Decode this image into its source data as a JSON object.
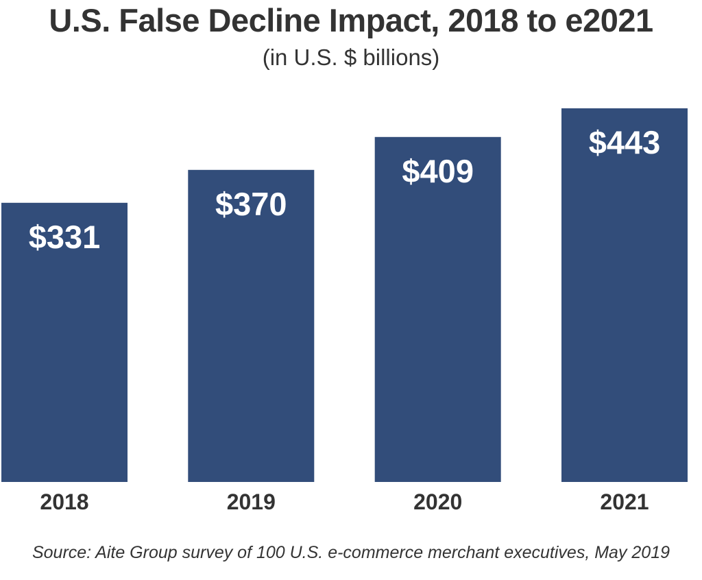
{
  "chart_data": {
    "type": "bar",
    "title": "U.S. False Decline Impact, 2018 to e2021",
    "subtitle": "(in U.S. $ billions)",
    "categories": [
      "2018",
      "2019",
      "2020",
      "2021"
    ],
    "values": [
      331,
      370,
      409,
      443
    ],
    "value_labels": [
      "$331",
      "$370",
      "$409",
      "$443"
    ],
    "xlabel": "",
    "ylabel": "",
    "ylim": [
      0,
      443
    ],
    "grid": false,
    "bar_color": "#324d7a"
  },
  "footer": {
    "source": "Source: Aite Group survey of 100 U.S. e-commerce merchant executives, May 2019"
  }
}
